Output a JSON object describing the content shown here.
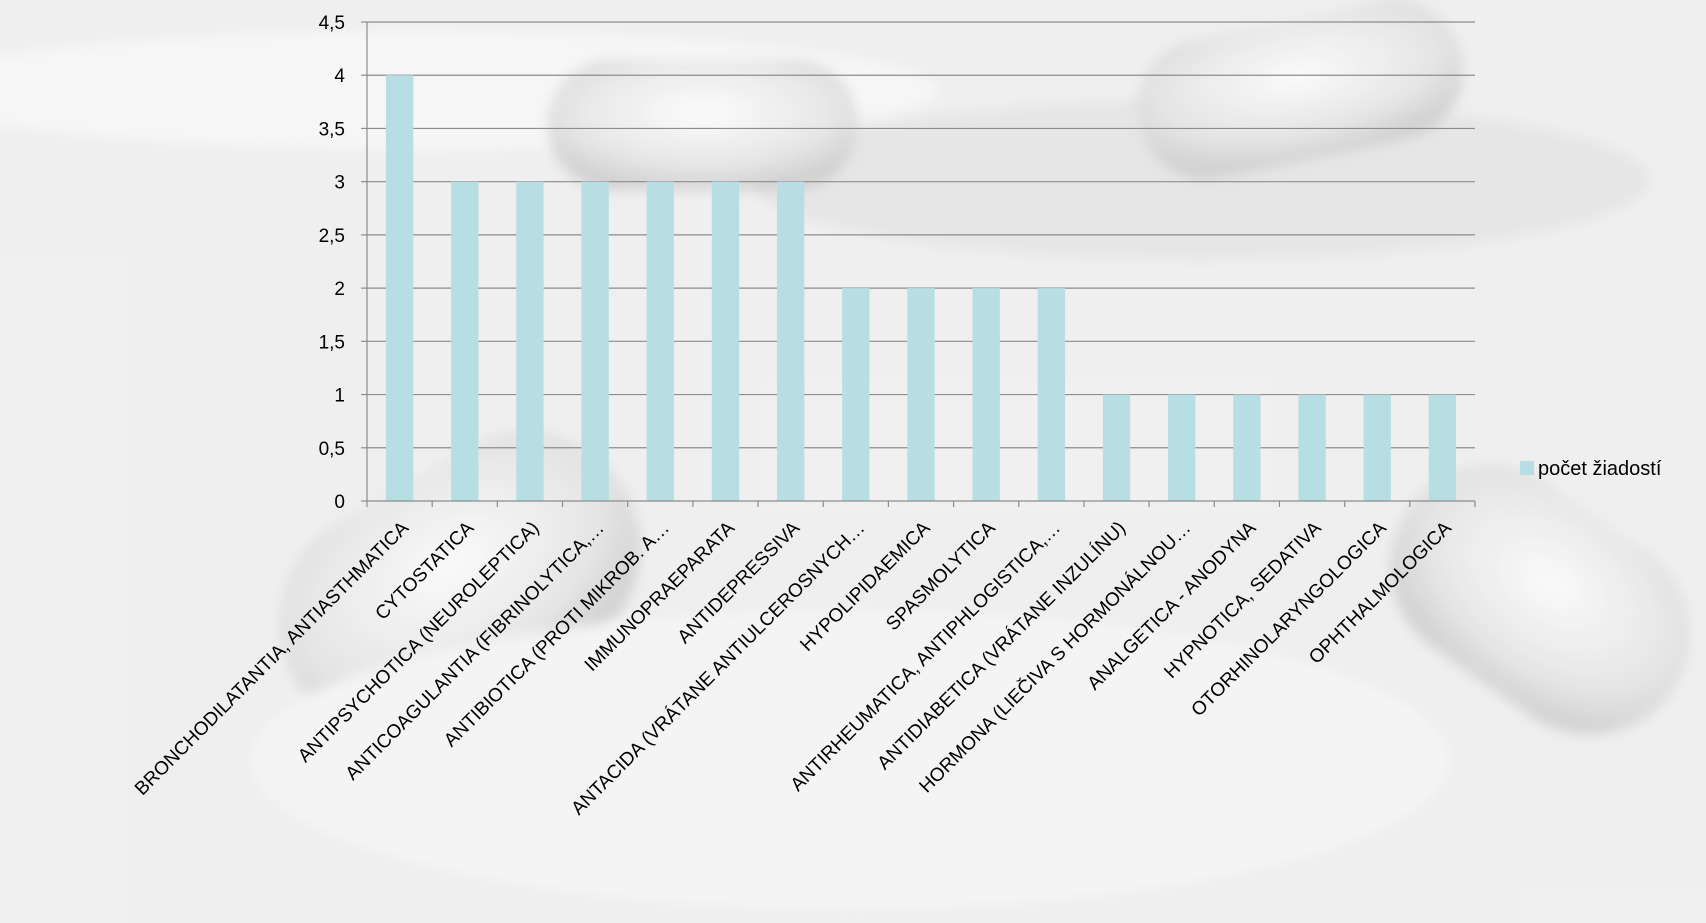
{
  "chart_data": {
    "type": "bar",
    "categories": [
      "BRONCHODILATANTIA, ANTIASTHMATICA",
      "CYTOSTATICA",
      "ANTIPSYCHOTICA (NEUROLEPTICA)",
      "ANTICOAGULANTIA (FIBRINOLYTICA,…",
      "ANTIBIOTICA (PROTI MIKROB. A…",
      "IMMUNOPRAEPARATA",
      "ANTIDEPRESSIVA",
      "ANTACIDA (VRÁTANE ANTIULCEROSNYCH…",
      "HYPOLIPIDAEMICA",
      "SPASMOLYTICA",
      "ANTIRHEUMATICA, ANTIPHLOGISTICA,…",
      "ANTIDIABETICA (VRÁTANE INZULÍNU)",
      "HORMONA (LIEČIVA S HORMONÁLNOU…",
      "ANALGETICA - ANODYNA",
      "HYPNOTICA, SEDATIVA",
      "OTORHINOLARYNGOLOGICA",
      "OPHTHALMOLOGICA"
    ],
    "series": [
      {
        "name": "počet žiadostí",
        "values": [
          4,
          3,
          3,
          3,
          3,
          3,
          3,
          2,
          2,
          2,
          2,
          1,
          1,
          1,
          1,
          1,
          1
        ]
      }
    ],
    "yticks": [
      "0",
      "0,5",
      "1",
      "1,5",
      "2",
      "2,5",
      "3",
      "3,5",
      "4",
      "4,5"
    ],
    "ylim": [
      0,
      4.5
    ],
    "grid": true,
    "legend_position": "right",
    "colors": {
      "bar": "#b7dfe3",
      "grid": "#8c8c8c",
      "axis": "#8c8c8c",
      "background": "#efefef"
    }
  }
}
